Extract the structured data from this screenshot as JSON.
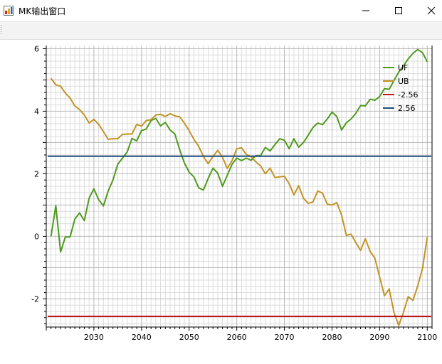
{
  "window": {
    "title": "MK输出窗口",
    "icons": {
      "app": "chart-app-icon",
      "minimize": "minimize-icon",
      "maximize": "maximize-icon",
      "close": "close-icon"
    }
  },
  "chart_data": {
    "type": "line",
    "xlim": [
      2020,
      2101
    ],
    "ylim": [
      -2.9,
      6.1
    ],
    "x_ticks": [
      2030,
      2040,
      2050,
      2060,
      2070,
      2080,
      2090,
      2100
    ],
    "y_ticks": [
      -2,
      0,
      2,
      4,
      6
    ],
    "grid": true,
    "legend_placement": "top-right",
    "x_start": 2021,
    "series": [
      {
        "name": "UF",
        "color": "#4f9a1c",
        "values": [
          0,
          0.98,
          -0.5,
          -0.02,
          -0.02,
          0.55,
          0.75,
          0.5,
          1.22,
          1.52,
          1.17,
          0.97,
          1.45,
          1.8,
          2.3,
          2.5,
          2.7,
          3.13,
          3.05,
          3.38,
          3.43,
          3.7,
          3.77,
          3.53,
          3.64,
          3.4,
          3.27,
          2.77,
          2.35,
          2.05,
          1.9,
          1.55,
          1.48,
          1.85,
          2.18,
          2.02,
          1.6,
          1.95,
          2.3,
          2.5,
          2.42,
          2.5,
          2.43,
          2.58,
          2.58,
          2.84,
          2.73,
          2.93,
          3.12,
          3.07,
          2.8,
          3.12,
          2.85,
          3.0,
          3.23,
          3.48,
          3.62,
          3.57,
          3.75,
          3.97,
          3.83,
          3.4,
          3.63,
          3.75,
          3.93,
          4.18,
          4.17,
          4.38,
          4.35,
          4.47,
          4.72,
          4.7,
          4.98,
          5.25,
          5.45,
          5.67,
          5.85,
          5.97,
          5.87,
          5.58
        ]
      },
      {
        "name": "UB",
        "color": "#c39325",
        "values": [
          5.05,
          4.84,
          4.8,
          4.58,
          4.42,
          4.17,
          4.05,
          3.88,
          3.62,
          3.74,
          3.58,
          3.35,
          3.1,
          3.12,
          3.12,
          3.26,
          3.27,
          3.27,
          3.58,
          3.52,
          3.7,
          3.73,
          3.88,
          3.9,
          3.83,
          3.92,
          3.85,
          3.82,
          3.62,
          3.38,
          3.1,
          2.88,
          2.55,
          2.32,
          2.55,
          2.75,
          2.53,
          2.17,
          2.42,
          2.8,
          2.83,
          2.62,
          2.55,
          2.38,
          2.25,
          2.0,
          2.18,
          1.88,
          1.9,
          1.92,
          1.68,
          1.32,
          1.62,
          1.22,
          1.05,
          1.1,
          1.45,
          1.38,
          1.03,
          1.0,
          1.08,
          0.68,
          0.03,
          0.07,
          -0.2,
          -0.45,
          -0.08,
          -0.48,
          -0.7,
          -1.3,
          -1.9,
          -1.68,
          -2.43,
          -2.85,
          -2.43,
          -1.93,
          -2.05,
          -1.58,
          -1.03,
          -0.02
        ]
      },
      {
        "name": "-2.56",
        "color": "#c0151b",
        "constant": -2.56
      },
      {
        "name": "2.56",
        "color": "#214f7d",
        "constant": 2.56
      }
    ]
  }
}
